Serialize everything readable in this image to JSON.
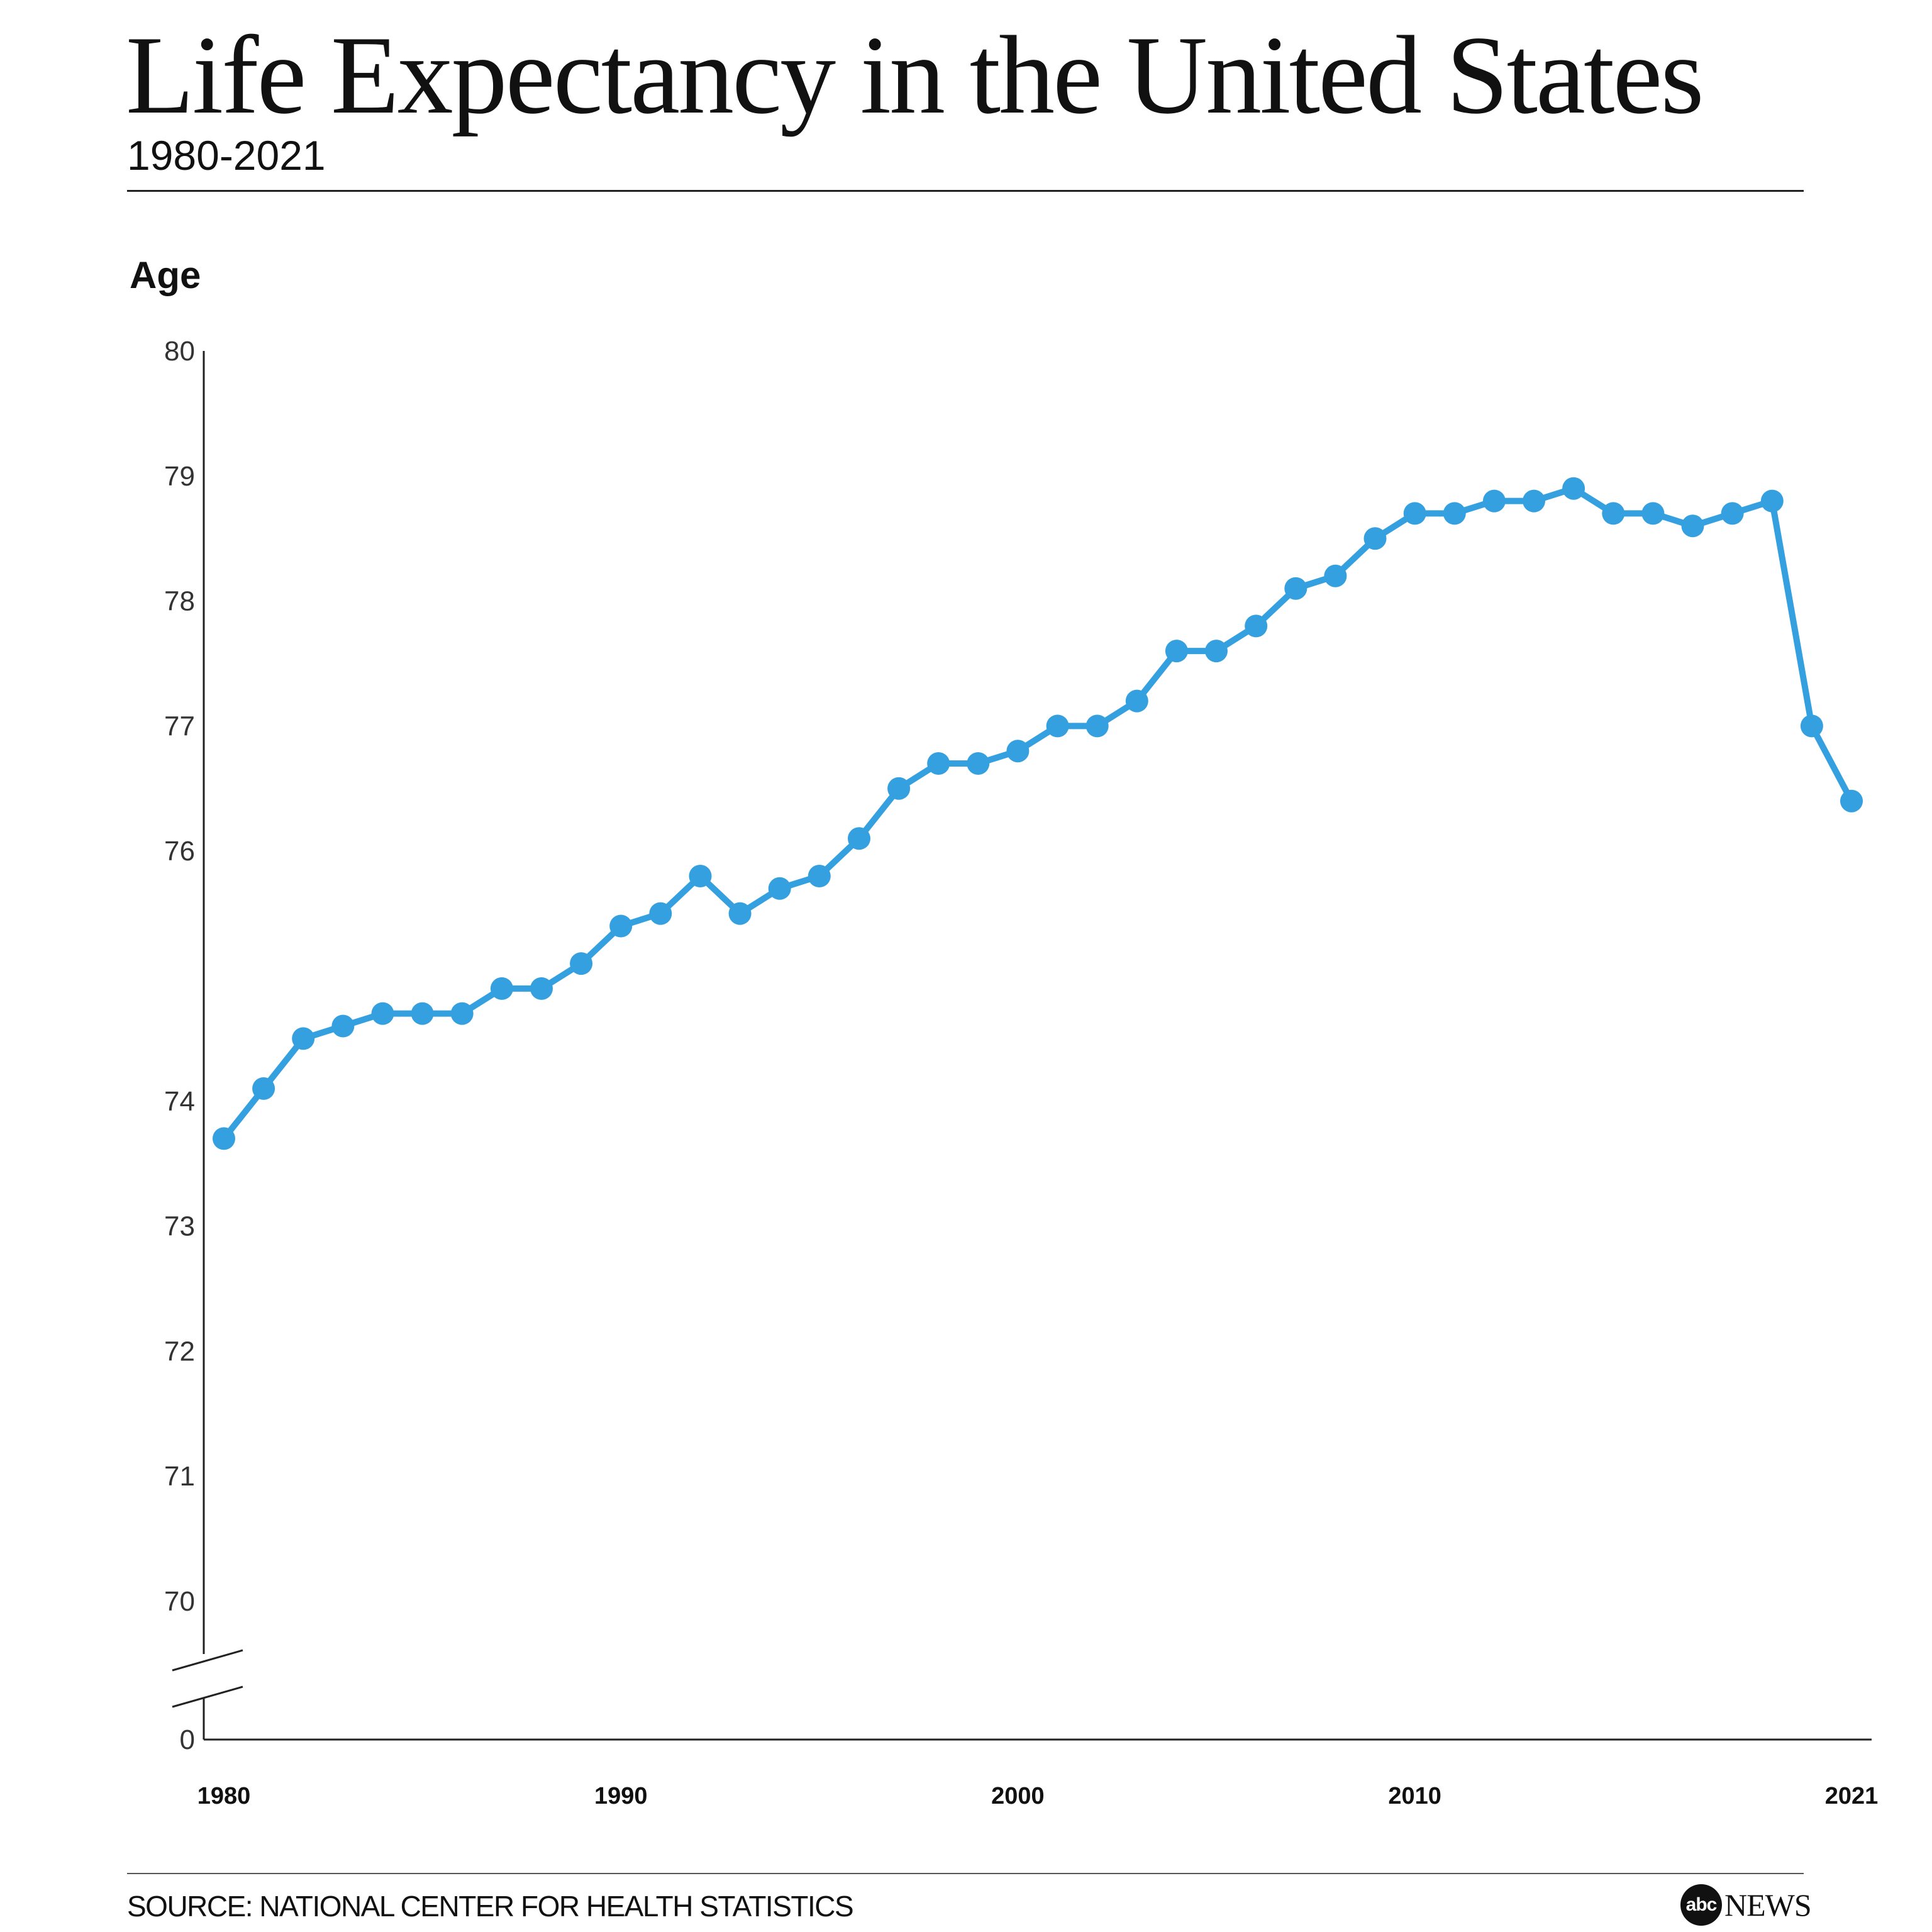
{
  "header": {
    "title": "Life Expectancy in the United States",
    "subtitle": "1980-2021"
  },
  "footer": {
    "source": "SOURCE: NATIONAL CENTER FOR HEALTH STATISTICS",
    "logo_abc": "abc",
    "logo_news": "NEWS"
  },
  "chart_data": {
    "type": "line",
    "title": "Life Expectancy in the United States",
    "subtitle": "1980-2021",
    "xlabel": "",
    "ylabel": "Age",
    "y_ticks": [
      80,
      79,
      78,
      77,
      76,
      74,
      73,
      72,
      71,
      70,
      0
    ],
    "y_axis_break": true,
    "x_ticks": [
      1980,
      1990,
      2000,
      2010,
      2021
    ],
    "xlim": [
      1980,
      2021
    ],
    "ylim": [
      70,
      80
    ],
    "grid": false,
    "line_color": "#35A0DF",
    "x": [
      1980,
      1981,
      1982,
      1983,
      1984,
      1985,
      1986,
      1987,
      1988,
      1989,
      1990,
      1991,
      1992,
      1993,
      1994,
      1995,
      1996,
      1997,
      1998,
      1999,
      2000,
      2001,
      2002,
      2003,
      2004,
      2005,
      2006,
      2007,
      2008,
      2009,
      2010,
      2011,
      2012,
      2013,
      2014,
      2015,
      2016,
      2017,
      2018,
      2019,
      2020,
      2021
    ],
    "values": [
      73.7,
      74.1,
      74.5,
      74.6,
      74.7,
      74.7,
      74.7,
      74.9,
      74.9,
      75.1,
      75.4,
      75.5,
      75.8,
      75.5,
      75.7,
      75.8,
      76.1,
      76.5,
      76.7,
      76.7,
      76.8,
      77.0,
      77.0,
      77.2,
      77.6,
      77.6,
      77.8,
      78.1,
      78.2,
      78.5,
      78.7,
      78.7,
      78.8,
      78.8,
      78.9,
      78.7,
      78.7,
      78.6,
      78.7,
      78.8,
      77.0,
      76.4
    ]
  }
}
